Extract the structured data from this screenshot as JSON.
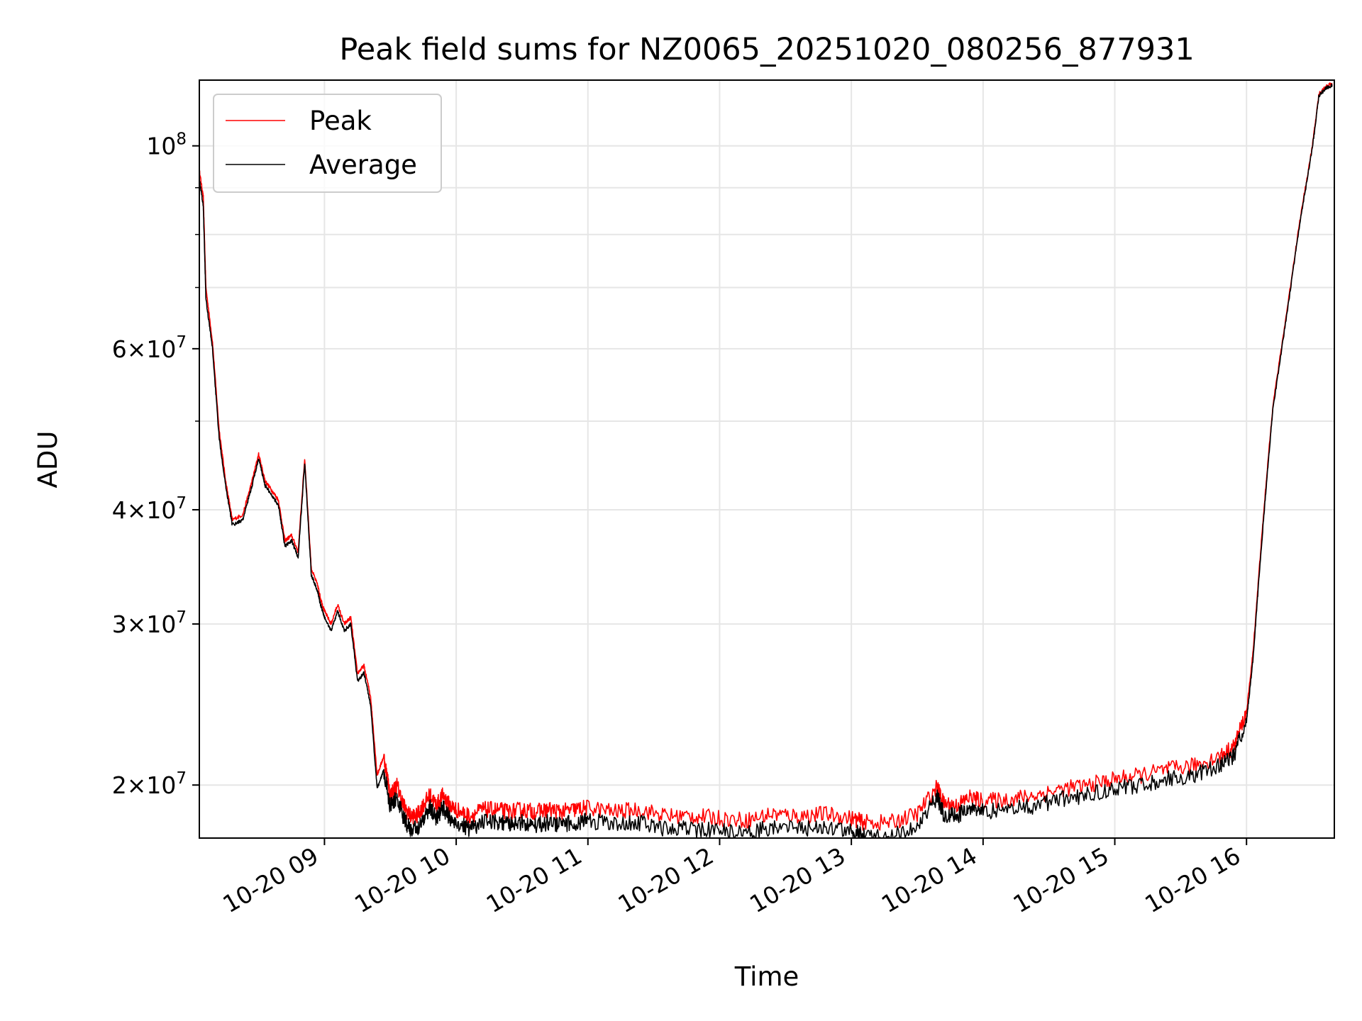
{
  "chart_data": {
    "type": "line",
    "title": "Peak field sums for NZ0065_20251020_080256_877931",
    "xlabel": "Time",
    "ylabel": "ADU",
    "yscale": "log",
    "ylim": [
      17500000,
      118000000
    ],
    "xlim": [
      "10-20 08:03",
      "10-20 16:40"
    ],
    "grid": true,
    "legend_position": "upper-left",
    "x_ticks": [
      "10-20 09",
      "10-20 10",
      "10-20 11",
      "10-20 12",
      "10-20 13",
      "10-20 14",
      "10-20 15",
      "10-20 16"
    ],
    "y_ticks": [
      {
        "value": 20000000,
        "mantissa": "2",
        "exponent": "7"
      },
      {
        "value": 30000000,
        "mantissa": "3",
        "exponent": "7"
      },
      {
        "value": 40000000,
        "mantissa": "4",
        "exponent": "7"
      },
      {
        "value": 60000000,
        "mantissa": "6",
        "exponent": "7"
      },
      {
        "value": 100000000,
        "mantissa": "",
        "exponent": "8"
      }
    ],
    "x_hours": [
      8.05,
      8.08,
      8.1,
      8.15,
      8.2,
      8.25,
      8.3,
      8.38,
      8.45,
      8.5,
      8.55,
      8.6,
      8.65,
      8.7,
      8.75,
      8.8,
      8.85,
      8.9,
      8.95,
      8.97,
      9.0,
      9.05,
      9.1,
      9.15,
      9.2,
      9.25,
      9.3,
      9.35,
      9.4,
      9.45,
      9.5,
      9.55,
      9.6,
      9.65,
      9.7,
      9.75,
      9.8,
      9.85,
      9.9,
      9.95,
      10.0,
      10.1,
      10.2,
      10.3,
      10.4,
      10.5,
      10.6,
      10.7,
      10.8,
      10.9,
      11.0,
      11.2,
      11.4,
      11.6,
      11.8,
      12.0,
      12.2,
      12.4,
      12.6,
      12.8,
      13.0,
      13.1,
      13.3,
      13.5,
      13.65,
      13.7,
      13.8,
      13.9,
      14.0,
      14.2,
      14.4,
      14.6,
      14.8,
      15.0,
      15.2,
      15.4,
      15.6,
      15.8,
      15.9,
      16.0,
      16.05,
      16.1,
      16.15,
      16.2,
      16.3,
      16.4,
      16.5,
      16.55,
      16.6,
      16.65
    ],
    "series": [
      {
        "name": "Peak",
        "color": "#ff0000",
        "values": [
          94000000,
          88000000,
          70000000,
          61000000,
          49000000,
          43000000,
          39000000,
          39500000,
          43000000,
          46000000,
          43000000,
          42000000,
          41000000,
          37000000,
          37500000,
          36000000,
          45500000,
          34500000,
          33000000,
          32000000,
          31000000,
          30000000,
          31500000,
          30000000,
          30500000,
          26500000,
          27000000,
          25000000,
          20500000,
          21500000,
          19500000,
          20000000,
          19000000,
          18500000,
          18500000,
          19000000,
          19500000,
          19000000,
          19500000,
          19000000,
          18800000,
          18500000,
          18800000,
          18800000,
          18700000,
          18800000,
          18700000,
          18800000,
          18700000,
          18800000,
          18900000,
          18700000,
          18800000,
          18500000,
          18500000,
          18400000,
          18300000,
          18600000,
          18500000,
          18600000,
          18400000,
          18200000,
          18200000,
          18600000,
          19900000,
          19100000,
          19000000,
          19400000,
          19200000,
          19300000,
          19500000,
          19800000,
          20000000,
          20300000,
          20500000,
          20800000,
          21000000,
          21500000,
          22000000,
          24000000,
          28000000,
          35000000,
          43000000,
          52000000,
          65000000,
          82000000,
          100000000,
          114000000,
          116000000,
          117000000
        ]
      },
      {
        "name": "Average",
        "color": "#000000",
        "values": [
          92000000,
          86000000,
          68000000,
          60000000,
          48000000,
          42500000,
          38500000,
          39000000,
          42500000,
          45500000,
          42500000,
          41500000,
          40500000,
          36500000,
          37000000,
          35500000,
          45000000,
          34000000,
          32500000,
          31500000,
          30500000,
          29500000,
          31000000,
          29500000,
          30000000,
          26000000,
          26500000,
          24500000,
          19800000,
          20800000,
          18900000,
          19400000,
          18400000,
          17900000,
          17900000,
          18400000,
          18900000,
          18400000,
          18900000,
          18400000,
          18200000,
          17900000,
          18200000,
          18200000,
          18100000,
          18200000,
          18100000,
          18200000,
          18100000,
          18200000,
          18300000,
          18100000,
          18200000,
          17900000,
          17900000,
          17800000,
          17700000,
          18000000,
          17900000,
          18000000,
          17800000,
          17600000,
          17600000,
          18000000,
          19400000,
          18600000,
          18500000,
          18900000,
          18700000,
          18800000,
          19000000,
          19300000,
          19500000,
          19800000,
          20000000,
          20300000,
          20500000,
          21000000,
          21500000,
          23500000,
          27500000,
          34500000,
          42500000,
          51500000,
          64500000,
          81500000,
          99500000,
          113500000,
          115500000,
          116500000
        ]
      }
    ]
  }
}
